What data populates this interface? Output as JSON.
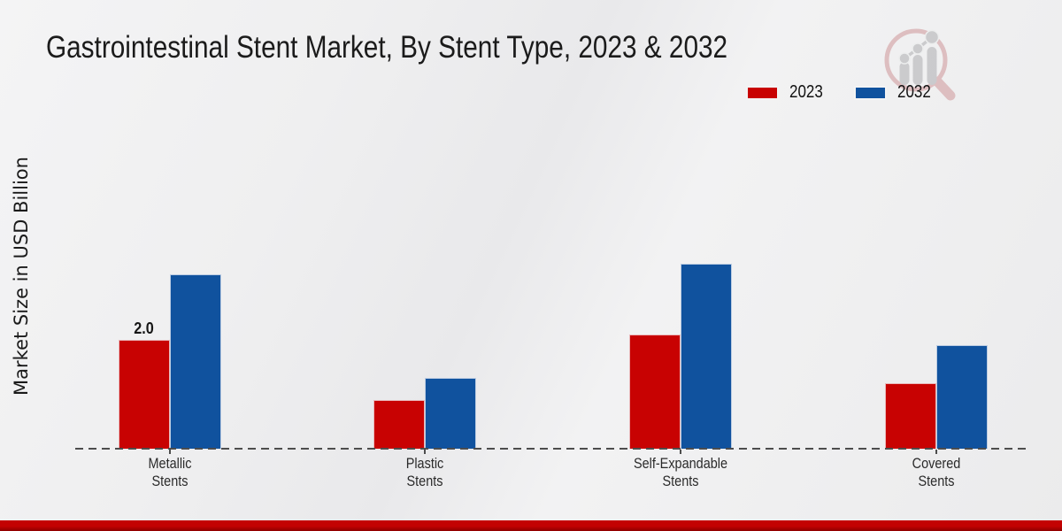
{
  "title": "Gastrointestinal Stent Market, By Stent Type, 2023 & 2032",
  "y_axis_label": "Market Size in USD Billion",
  "legend": [
    {
      "label": "2023",
      "color": "#c80202"
    },
    {
      "label": "2032",
      "color": "#10529e"
    }
  ],
  "chart_data": {
    "type": "bar",
    "categories": [
      "Metallic Stents",
      "Plastic Stents",
      "Self-Expandable Stents",
      "Covered Stents"
    ],
    "category_lines": [
      [
        "Metallic",
        "Stents"
      ],
      [
        "Plastic",
        "Stents"
      ],
      [
        "Self-Expandable",
        "Stents"
      ],
      [
        "Covered",
        "Stents"
      ]
    ],
    "series": [
      {
        "name": "2023",
        "color": "#c80202",
        "values": [
          2.0,
          0.9,
          2.1,
          1.2
        ],
        "data_labels": [
          "2.0",
          "",
          "",
          ""
        ]
      },
      {
        "name": "2032",
        "color": "#10529e",
        "values": [
          3.2,
          1.3,
          3.4,
          1.9
        ],
        "data_labels": [
          "",
          "",
          "",
          ""
        ]
      }
    ],
    "title": "Gastrointestinal Stent Market, By Stent Type, 2023 & 2032",
    "xlabel": "",
    "ylabel": "Market Size in USD Billion",
    "ylim": [
      0,
      3.5
    ],
    "grid": false,
    "yticks_visible": false,
    "x_baseline_style": "dashed",
    "legend_position": "top-right"
  },
  "logo": {
    "name": "magnifier-bar-chart-logo",
    "magnifier_color": "#dcb9bb",
    "bars_color": "#c7c7ca"
  },
  "footer": {
    "accent_color": "#c30202"
  }
}
